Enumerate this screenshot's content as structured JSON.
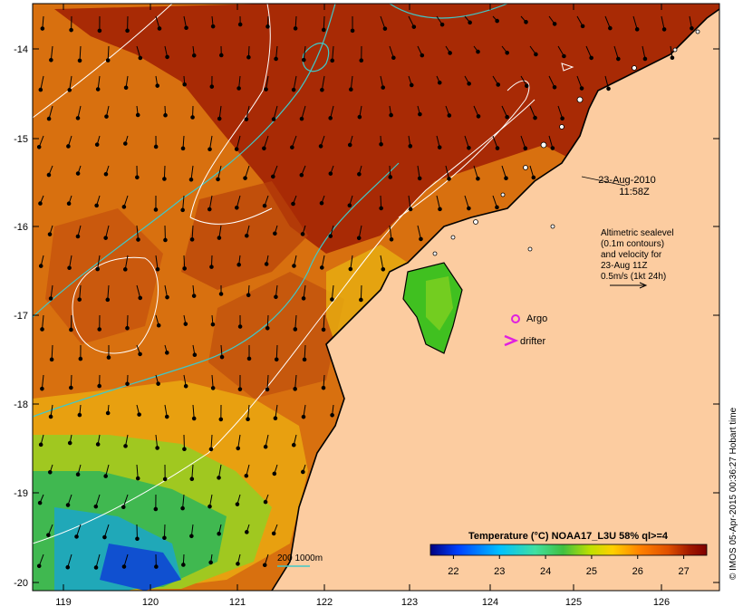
{
  "map": {
    "timestamp_date": "23-Aug-2010",
    "timestamp_time": "11:58Z",
    "x_ticks": [
      "119",
      "120",
      "121",
      "122",
      "123",
      "124",
      "125",
      "126"
    ],
    "y_ticks": [
      "-14",
      "-15",
      "-16",
      "-17",
      "-18",
      "-19",
      "-20"
    ],
    "altimetry_note": [
      "Altimetric sealevel",
      "(0.1m contours)",
      "and velocity for",
      "23-Aug 11Z",
      "0.5m/s (1kt 24h)"
    ],
    "legend_argo": "Argo",
    "legend_drifter": "drifter",
    "bathy_label": "200  1000m",
    "credit": "© IMOS 05-Apr-2015 00:36:27 Hobart time",
    "colors": {
      "land": "#fccca0",
      "sea_warm": "#a82800",
      "sea_mid": "#e07810",
      "bathy_line": "#40c8c8",
      "argo": "#e020e0"
    }
  },
  "colorbar": {
    "title": "Temperature (°C) NOAA17_L3U 58% ql>=4",
    "min": 21.5,
    "max": 27.5,
    "tick_labels": [
      "22",
      "23",
      "24",
      "25",
      "26",
      "27"
    ],
    "tick_values": [
      22,
      23,
      24,
      25,
      26,
      27
    ],
    "palette": [
      "#000080",
      "#0040ff",
      "#00c0ff",
      "#40e0a0",
      "#40c040",
      "#c0e000",
      "#ffd000",
      "#ff8000",
      "#e05000",
      "#a01800",
      "#800000"
    ]
  }
}
